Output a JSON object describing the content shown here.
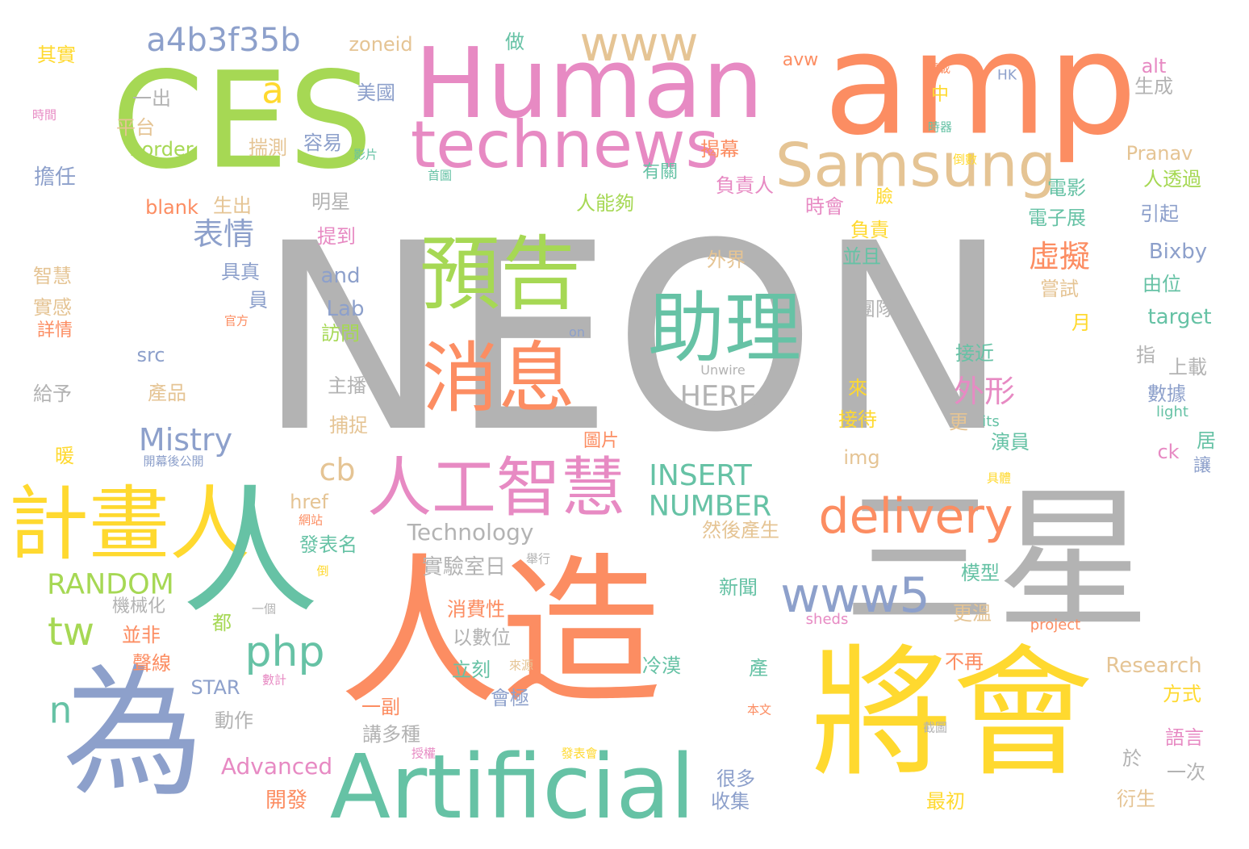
{
  "palette": {
    "gray": "#b3b3b3",
    "orange": "#fc8d62",
    "green": "#a6d854",
    "yellow": "#ffd92f",
    "pink": "#e78ac3",
    "blue": "#8da0cb",
    "teal": "#66c2a5",
    "tan": "#e5c494"
  },
  "words": [
    {
      "text": "NEON",
      "color": "gray"
    },
    {
      "text": "amp",
      "color": "orange"
    },
    {
      "text": "CES",
      "color": "green"
    },
    {
      "text": "人造",
      "color": "orange"
    },
    {
      "text": "三星",
      "color": "gray"
    },
    {
      "text": "為",
      "color": "blue"
    },
    {
      "text": "將會",
      "color": "yellow"
    },
    {
      "text": "Human",
      "color": "pink"
    },
    {
      "text": "計畫人",
      "color": "yellow"
    },
    {
      "text": "人",
      "color": "teal"
    },
    {
      "text": "Artificial",
      "color": "teal"
    },
    {
      "text": "technews",
      "color": "pink"
    },
    {
      "text": "預告",
      "color": "green"
    },
    {
      "text": "助理",
      "color": "teal"
    },
    {
      "text": "消息",
      "color": "orange"
    },
    {
      "text": "Samsung",
      "color": "tan"
    },
    {
      "text": "人工智慧",
      "color": "pink"
    },
    {
      "text": "www",
      "color": "tan"
    },
    {
      "text": "delivery",
      "color": "orange"
    },
    {
      "text": "www5",
      "color": "blue"
    },
    {
      "text": "a4b3f35b",
      "color": "blue"
    },
    {
      "text": "php",
      "color": "teal"
    },
    {
      "text": "tw",
      "color": "green"
    },
    {
      "text": "n",
      "color": "teal"
    },
    {
      "text": "a",
      "color": "yellow"
    },
    {
      "text": "Mistry",
      "color": "blue"
    },
    {
      "text": "cb",
      "color": "tan"
    },
    {
      "text": "INSERT",
      "color": "teal"
    },
    {
      "text": "NUMBER",
      "color": "teal"
    },
    {
      "text": "RANDOM",
      "color": "green"
    },
    {
      "text": "HERE",
      "color": "gray"
    },
    {
      "text": "虛擬",
      "color": "orange"
    },
    {
      "text": "外形",
      "color": "pink"
    },
    {
      "text": "表情",
      "color": "blue"
    },
    {
      "text": "Technology",
      "color": "gray"
    },
    {
      "text": "Advanced",
      "color": "pink"
    },
    {
      "text": "Research",
      "color": "tan"
    },
    {
      "text": "border",
      "color": "green"
    },
    {
      "text": "blank",
      "color": "orange"
    },
    {
      "text": "zoneid",
      "color": "tan"
    },
    {
      "text": "avw",
      "color": "orange"
    },
    {
      "text": "alt",
      "color": "pink"
    },
    {
      "text": "Pranav",
      "color": "tan"
    },
    {
      "text": "Bixby",
      "color": "blue"
    },
    {
      "text": "target",
      "color": "teal"
    },
    {
      "text": "and",
      "color": "blue"
    },
    {
      "text": "Lab",
      "color": "blue"
    },
    {
      "text": "src",
      "color": "blue"
    },
    {
      "text": "img",
      "color": "tan"
    },
    {
      "text": "href",
      "color": "tan"
    },
    {
      "text": "STAR",
      "color": "blue"
    },
    {
      "text": "ck",
      "color": "pink"
    },
    {
      "text": "on",
      "color": "blue"
    },
    {
      "text": "its",
      "color": "teal"
    },
    {
      "text": "light",
      "color": "teal"
    },
    {
      "text": "sheds",
      "color": "pink"
    },
    {
      "text": "project",
      "color": "orange"
    },
    {
      "text": "Unwire",
      "color": "gray"
    },
    {
      "text": "HK",
      "color": "blue"
    },
    {
      "text": "其實",
      "color": "yellow"
    },
    {
      "text": "一出",
      "color": "gray"
    },
    {
      "text": "平台",
      "color": "tan"
    },
    {
      "text": "擔任",
      "color": "blue"
    },
    {
      "text": "智慧",
      "color": "tan"
    },
    {
      "text": "實感",
      "color": "tan"
    },
    {
      "text": "詳情",
      "color": "orange"
    },
    {
      "text": "給予",
      "color": "gray"
    },
    {
      "text": "暖",
      "color": "yellow"
    },
    {
      "text": "時間",
      "color": "pink"
    },
    {
      "text": "美國",
      "color": "blue"
    },
    {
      "text": "做",
      "color": "teal"
    },
    {
      "text": "揣測",
      "color": "tan"
    },
    {
      "text": "容易",
      "color": "blue"
    },
    {
      "text": "影片",
      "color": "teal"
    },
    {
      "text": "生出",
      "color": "tan"
    },
    {
      "text": "明星",
      "color": "gray"
    },
    {
      "text": "提到",
      "color": "pink"
    },
    {
      "text": "具真",
      "color": "blue"
    },
    {
      "text": "員",
      "color": "blue"
    },
    {
      "text": "官方",
      "color": "orange"
    },
    {
      "text": "訪問",
      "color": "green"
    },
    {
      "text": "產品",
      "color": "tan"
    },
    {
      "text": "主播",
      "color": "gray"
    },
    {
      "text": "捕捉",
      "color": "tan"
    },
    {
      "text": "圖片",
      "color": "orange"
    },
    {
      "text": "開幕後公開",
      "color": "blue"
    },
    {
      "text": "發表名",
      "color": "teal"
    },
    {
      "text": "網站",
      "color": "orange"
    },
    {
      "text": "倒",
      "color": "yellow"
    },
    {
      "text": "實驗室日",
      "color": "gray"
    },
    {
      "text": "舉行",
      "color": "gray"
    },
    {
      "text": "機械化",
      "color": "gray"
    },
    {
      "text": "一個",
      "color": "gray"
    },
    {
      "text": "都",
      "color": "green"
    },
    {
      "text": "並非",
      "color": "orange"
    },
    {
      "text": "聲線",
      "color": "orange"
    },
    {
      "text": "數計",
      "color": "pink"
    },
    {
      "text": "動作",
      "color": "gray"
    },
    {
      "text": "消費性",
      "color": "orange"
    },
    {
      "text": "以數位",
      "color": "gray"
    },
    {
      "text": "立刻",
      "color": "teal"
    },
    {
      "text": "來源",
      "color": "tan"
    },
    {
      "text": "會極",
      "color": "blue"
    },
    {
      "text": "一副",
      "color": "orange"
    },
    {
      "text": "講多種",
      "color": "gray"
    },
    {
      "text": "授權",
      "color": "pink"
    },
    {
      "text": "開發",
      "color": "orange"
    },
    {
      "text": "發表會",
      "color": "yellow"
    },
    {
      "text": "轉載",
      "color": "orange"
    },
    {
      "text": "時器",
      "color": "teal"
    },
    {
      "text": "倒數",
      "color": "yellow"
    },
    {
      "text": "首圖",
      "color": "teal"
    },
    {
      "text": "有關",
      "color": "teal"
    },
    {
      "text": "揭幕",
      "color": "orange"
    },
    {
      "text": "負責人",
      "color": "pink"
    },
    {
      "text": "人能夠",
      "color": "green"
    },
    {
      "text": "時會",
      "color": "pink"
    },
    {
      "text": "負責",
      "color": "yellow"
    },
    {
      "text": "並且",
      "color": "teal"
    },
    {
      "text": "外界",
      "color": "tan"
    },
    {
      "text": "電影",
      "color": "teal"
    },
    {
      "text": "臉",
      "color": "yellow"
    },
    {
      "text": "中",
      "color": "yellow"
    },
    {
      "text": "生成",
      "color": "gray"
    },
    {
      "text": "人透過",
      "color": "green"
    },
    {
      "text": "引起",
      "color": "blue"
    },
    {
      "text": "電子展",
      "color": "teal"
    },
    {
      "text": "由位",
      "color": "teal"
    },
    {
      "text": "嘗試",
      "color": "tan"
    },
    {
      "text": "月",
      "color": "yellow"
    },
    {
      "text": "團隊",
      "color": "gray"
    },
    {
      "text": "指",
      "color": "gray"
    },
    {
      "text": "上載",
      "color": "gray"
    },
    {
      "text": "數據",
      "color": "blue"
    },
    {
      "text": "接近",
      "color": "teal"
    },
    {
      "text": "來",
      "color": "yellow"
    },
    {
      "text": "接待",
      "color": "yellow"
    },
    {
      "text": "更",
      "color": "tan"
    },
    {
      "text": "演員",
      "color": "teal"
    },
    {
      "text": "居",
      "color": "teal"
    },
    {
      "text": "讓",
      "color": "blue"
    },
    {
      "text": "具體",
      "color": "yellow"
    },
    {
      "text": "然後產生",
      "color": "tan"
    },
    {
      "text": "模型",
      "color": "teal"
    },
    {
      "text": "更溫",
      "color": "tan"
    },
    {
      "text": "新聞",
      "color": "teal"
    },
    {
      "text": "不再",
      "color": "orange"
    },
    {
      "text": "冷漠",
      "color": "teal"
    },
    {
      "text": "產",
      "color": "teal"
    },
    {
      "text": "本文",
      "color": "orange"
    },
    {
      "text": "截圖",
      "color": "gray"
    },
    {
      "text": "方式",
      "color": "yellow"
    },
    {
      "text": "語言",
      "color": "pink"
    },
    {
      "text": "於",
      "color": "gray"
    },
    {
      "text": "一次",
      "color": "gray"
    },
    {
      "text": "很多",
      "color": "blue"
    },
    {
      "text": "收集",
      "color": "blue"
    },
    {
      "text": "最初",
      "color": "yellow"
    },
    {
      "text": "衍生",
      "color": "tan"
    }
  ]
}
